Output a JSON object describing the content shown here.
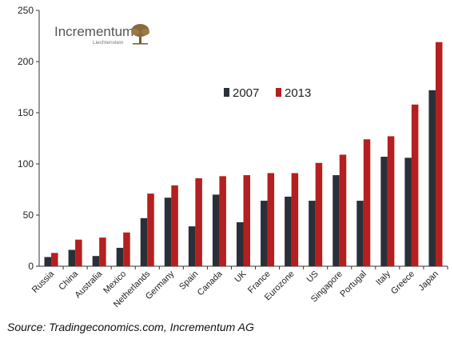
{
  "chart_data": {
    "type": "bar",
    "title": "",
    "xlabel": "",
    "ylabel": "",
    "ylim": [
      0,
      250
    ],
    "yticks": [
      0,
      50,
      100,
      150,
      200,
      250
    ],
    "grid": false,
    "legend_position": "center-top",
    "categories": [
      "Russia",
      "China",
      "Australia",
      "Mexico",
      "Netherlands",
      "Germany",
      "Spain",
      "Canada",
      "UK",
      "France",
      "Eurozone",
      "US",
      "Singapore",
      "Portugal",
      "Italy",
      "Greece",
      "Japan"
    ],
    "series": [
      {
        "name": "2007",
        "color": "#2b2f38",
        "values": [
          9,
          16,
          10,
          18,
          47,
          67,
          39,
          70,
          43,
          64,
          68,
          64,
          89,
          64,
          107,
          106,
          172
        ]
      },
      {
        "name": "2013",
        "color": "#b51f1f",
        "values": [
          13,
          26,
          28,
          33,
          71,
          79,
          86,
          88,
          89,
          91,
          91,
          101,
          109,
          124,
          127,
          158,
          219
        ]
      }
    ]
  },
  "logo": {
    "name": "Incrementum",
    "subtitle": "Liechtenstein"
  },
  "source": "Source: Tradingeconomics.com, Incrementum AG"
}
